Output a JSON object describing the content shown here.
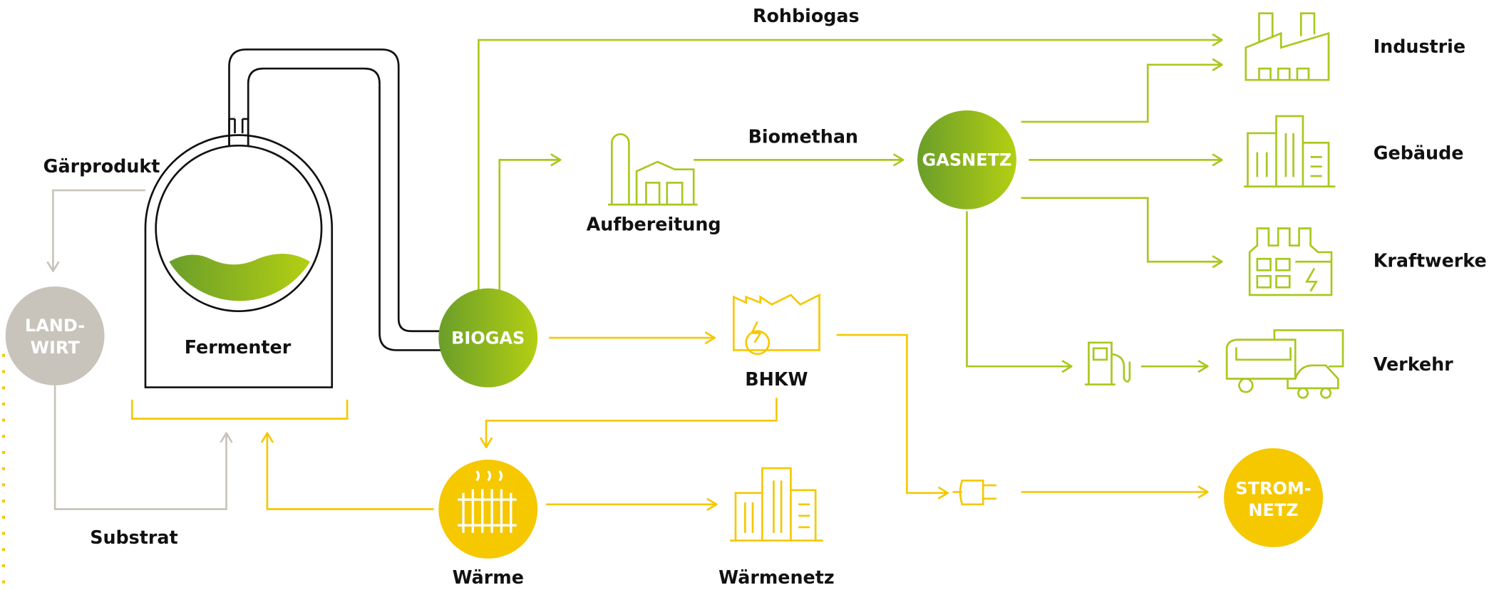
{
  "texts": [
    "Rohbiogas",
    "Industrie",
    "Biomethan",
    "Gärprodukt",
    "Gebäude",
    "Aufbereitung",
    "Kraftwerke",
    "Fermenter",
    "BHKW",
    "Verkehr",
    "Substrat",
    "Wärme",
    "Wärmenetz"
  ],
  "hubs": [
    {
      "lines": [
        "LAND-",
        "WIRT"
      ]
    },
    {
      "lines": [
        "BIOGAS"
      ]
    },
    {
      "lines": [
        "GASNETZ"
      ]
    },
    {
      "lines": [
        "STROM-",
        "NETZ"
      ]
    }
  ]
}
